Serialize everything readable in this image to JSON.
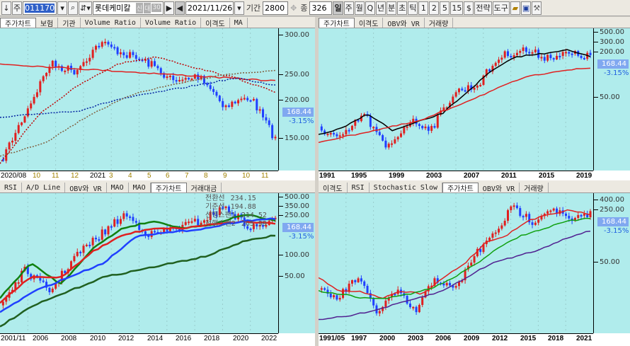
{
  "toolbar": {
    "down_arrow": "↓",
    "week_btn": "주",
    "code": "011170",
    "name": "롯데케미칼",
    "badges": [
      "신",
      "대",
      "30"
    ],
    "next": "▶",
    "prev": "◀",
    "date": "2021/11/26",
    "period_label": "기간",
    "period": "2800",
    "count_label": "종",
    "count": "326",
    "intervals": [
      "일",
      "주",
      "월",
      "Q",
      "년",
      "분",
      "초",
      "틱",
      "1",
      "2",
      "5",
      "15"
    ],
    "currency": "$",
    "strategy": "전략",
    "tools": "도구"
  },
  "price": {
    "last": "168.44",
    "change": "-3.15%"
  },
  "panels": [
    {
      "id": "tl",
      "tabs": [
        "주가차트",
        "보험",
        "기관",
        "Volume Ratio",
        "Volume Ratio",
        "이격도",
        "MA"
      ],
      "active": 0,
      "yticks": [
        "300.00",
        "250.00",
        "200.00",
        "150.00"
      ],
      "xlabels": [
        "2020/08",
        "10",
        "11",
        "12",
        "2021",
        "3",
        "4",
        "5",
        "6",
        "7",
        "8",
        "9",
        "10",
        "11"
      ]
    },
    {
      "id": "tr",
      "tabs": [
        "주가차트",
        "이격도",
        "OBV와 VR",
        "거래량"
      ],
      "active": 0,
      "yticks": [
        "500.00",
        "300.00",
        "200.00",
        "50.00"
      ],
      "xlabels": [
        "1991",
        "1995",
        "1999",
        "2003",
        "2007",
        "2011",
        "2015",
        "2019"
      ]
    },
    {
      "id": "bl",
      "tabs": [
        "RSI",
        "A/D Line",
        "OBV와 VR",
        "MAO",
        "MAO",
        "주가차트",
        "거래대금"
      ],
      "active": 5,
      "yticks": [
        "500.00",
        "350.00",
        "250.00",
        "100.00",
        "50.00"
      ],
      "xlabels": [
        "2001/11",
        "2006",
        "2008",
        "2010",
        "2012",
        "2014",
        "2016",
        "2018",
        "2020",
        "2022"
      ],
      "legend": [
        [
          "전환선",
          "234.15"
        ],
        [
          "기준선",
          "194.88"
        ],
        [
          "선행스팬1",
          "214.52"
        ],
        [
          "선행스팬2",
          "265.99"
        ]
      ]
    },
    {
      "id": "br",
      "tabs": [
        "이격도",
        "RSI",
        "Stochastic Slow",
        "주가차트",
        "OBV와 VR",
        "거래량"
      ],
      "active": 3,
      "yticks": [
        "400.00",
        "250.00",
        "50.00"
      ],
      "xlabels": [
        "1991/05",
        "1997",
        "2000",
        "2003",
        "2006",
        "2009",
        "2012",
        "2015",
        "2018",
        "2021"
      ]
    }
  ],
  "controls": {
    "ratio": "1:1"
  }
}
